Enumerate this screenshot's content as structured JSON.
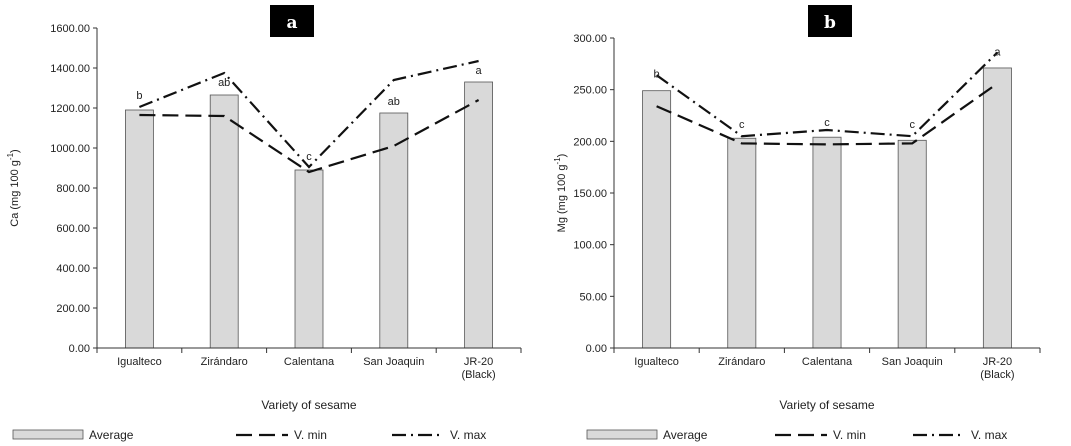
{
  "chart_data": [
    {
      "type": "bar",
      "panel_label": "a",
      "categories": [
        "Igualteco",
        "Zirándaro",
        "Calentana",
        "San Joaquin",
        "JR-20 (Black)"
      ],
      "category_lines": [
        [
          "Igualteco"
        ],
        [
          "Zirándaro"
        ],
        [
          "Calentana"
        ],
        [
          "San Joaquin"
        ],
        [
          "JR-20",
          "(Black)"
        ]
      ],
      "series": [
        {
          "name": "Average",
          "kind": "bar",
          "values": [
            1190,
            1265,
            890,
            1175,
            1330
          ],
          "color": "#d9d9d9"
        },
        {
          "name": "V. min",
          "kind": "line",
          "dash": "long",
          "values": [
            1165,
            1160,
            880,
            1010,
            1240
          ]
        },
        {
          "name": "V. max",
          "kind": "line",
          "dash": "dashdot",
          "values": [
            1205,
            1375,
            905,
            1340,
            1435
          ]
        }
      ],
      "significance_letters": [
        "b",
        "ab",
        "c",
        "ab",
        "a"
      ],
      "letter_values": [
        1245,
        1310,
        940,
        1215,
        1370
      ],
      "ylabel_main": "Ca (mg 100 g",
      "ylabel_sup": "-1",
      "ylabel_end": ")",
      "xlabel": "Variety of sesame",
      "ylim": [
        0,
        1600
      ],
      "yticks": [
        "0.00",
        "200.00",
        "400.00",
        "600.00",
        "800.00",
        "1000.00",
        "1200.00",
        "1400.00",
        "1600.00"
      ],
      "ytick_values": [
        0,
        200,
        400,
        600,
        800,
        1000,
        1200,
        1400,
        1600
      ],
      "grid": false,
      "legend_position": "bottom"
    },
    {
      "type": "bar",
      "panel_label": "b",
      "categories": [
        "Igualteco",
        "Zirándaro",
        "Calentana",
        "San Joaquin",
        "JR-20 (Black)"
      ],
      "category_lines": [
        [
          "Igualteco"
        ],
        [
          "Zirándaro"
        ],
        [
          "Calentana"
        ],
        [
          "San Joaquin"
        ],
        [
          "JR-20",
          "(Black)"
        ]
      ],
      "series": [
        {
          "name": "Average",
          "kind": "bar",
          "values": [
            249,
            203,
            204,
            201,
            271
          ],
          "color": "#d9d9d9"
        },
        {
          "name": "V. min",
          "kind": "line",
          "dash": "long",
          "values": [
            234,
            198,
            197,
            198,
            256
          ]
        },
        {
          "name": "V. max",
          "kind": "line",
          "dash": "dashdot",
          "values": [
            264,
            205,
            211,
            205,
            286
          ]
        }
      ],
      "significance_letters": [
        "b",
        "c",
        "c",
        "c",
        "a"
      ],
      "letter_values": [
        262,
        213,
        215,
        213,
        283
      ],
      "ylabel_main": "Mg (mg 100 g",
      "ylabel_sup": "-1",
      "ylabel_end": ")",
      "xlabel": "Variety of sesame",
      "ylim": [
        0,
        300
      ],
      "yticks": [
        "0.00",
        "50.00",
        "100.00",
        "150.00",
        "200.00",
        "250.00",
        "300.00"
      ],
      "ytick_values": [
        0,
        50,
        100,
        150,
        200,
        250,
        300
      ],
      "grid": false,
      "legend_position": "bottom"
    }
  ]
}
